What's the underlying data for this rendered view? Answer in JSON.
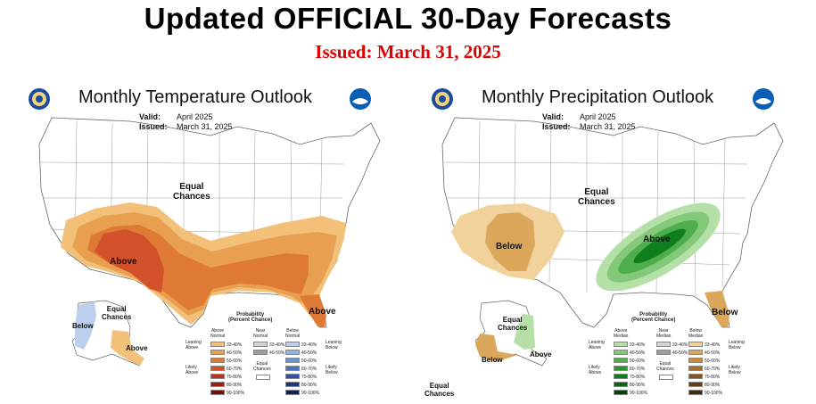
{
  "header": {
    "title": "Updated OFFICIAL 30-Day Forecasts",
    "issued": "Issued: March 31, 2025"
  },
  "panels": [
    {
      "title": "Monthly Temperature Outlook",
      "valid_label": "Valid:",
      "valid_value": "April 2025",
      "issued_label": "Issued:",
      "issued_value": "March 31, 2025",
      "labels": {
        "equal_chances": "Equal\nChances",
        "above_main": "Above",
        "above_florida": "Above",
        "alaska_equal": "Equal\nChances",
        "alaska_below": "Below",
        "alaska_above": "Above"
      },
      "legend": {
        "title": "Probability\n(Percent Chance)",
        "col1": "Above\nNormal",
        "col2": "Near\nNormal",
        "col3": "Below\nNormal",
        "leaning_left": "Leaning\nAbove",
        "likely_left": "Likely\nAbove",
        "leaning_right": "Leaning\nBelow",
        "likely_right": "Likely\nBelow",
        "equal_chances": "Equal\nChances",
        "col1_ranges": [
          "33-40%",
          "40-50%",
          "50-60%",
          "60-70%",
          "70-80%",
          "80-90%",
          "90-100%"
        ],
        "col2_ranges": [
          "33-40%",
          "40-50%"
        ],
        "col3_ranges": [
          "33-40%",
          "40-50%",
          "50-60%",
          "60-70%",
          "70-80%",
          "80-90%",
          "90-100%"
        ],
        "col1_colors": [
          "#f2c079",
          "#e8a050",
          "#df7a35",
          "#d2502a",
          "#b8341e",
          "#962010",
          "#6e1206"
        ],
        "col2_colors": [
          "#d2d2d2",
          "#9e9e9e"
        ],
        "col3_colors": [
          "#bcd0ee",
          "#93b4e2",
          "#6d95d3",
          "#4a74c2",
          "#2e52a6",
          "#1f3580",
          "#141f58"
        ]
      }
    },
    {
      "title": "Monthly Precipitation Outlook",
      "valid_label": "Valid:",
      "valid_value": "April 2025",
      "issued_label": "Issued:",
      "issued_value": "March 31, 2025",
      "labels": {
        "equal_chances": "Equal\nChances",
        "below_sw": "Below",
        "above_main": "Above",
        "below_florida": "Below",
        "alaska_equal_top": "Equal\nChances",
        "alaska_below": "Below",
        "alaska_above": "Above",
        "alaska_equal_bottom": "Equal\nChances"
      },
      "legend": {
        "title": "Probability\n(Percent Chance)",
        "col1": "Above\nMedian",
        "col2": "Near\nMedian",
        "col3": "Below\nMedian",
        "leaning_left": "Leaning\nAbove",
        "likely_left": "Likely\nAbove",
        "leaning_right": "Leaning\nBelow",
        "likely_right": "Likely\nBelow",
        "equal_chances": "Equal\nChances",
        "col1_ranges": [
          "33-40%",
          "40-50%",
          "50-60%",
          "60-70%",
          "70-80%",
          "80-90%",
          "90-100%"
        ],
        "col2_ranges": [
          "33-40%",
          "40-50%"
        ],
        "col3_ranges": [
          "33-40%",
          "40-50%",
          "50-60%",
          "60-70%",
          "70-80%",
          "80-90%",
          "90-100%"
        ],
        "col1_colors": [
          "#b4e0a8",
          "#84c87a",
          "#4fae4c",
          "#269a2a",
          "#0f7e1c",
          "#0b6114",
          "#06400c"
        ],
        "col2_colors": [
          "#d2d2d2",
          "#9e9e9e"
        ],
        "col3_colors": [
          "#f0d29a",
          "#dba75a",
          "#c98a3a",
          "#a86e2c",
          "#845520",
          "#633f18",
          "#422a10"
        ]
      }
    }
  ],
  "colors": {
    "title_red": "#e00000",
    "above_light": "#f2c079",
    "above_mid": "#e8a050",
    "above_strong": "#df7a35",
    "above_core": "#d2502a",
    "below_blue": "#bcd0ee",
    "precip_green_light": "#b4e0a8",
    "precip_green_mid": "#84c87a",
    "precip_green_strong": "#4fae4c",
    "precip_green_core": "#0f7e1c",
    "precip_below": "#f0d29a",
    "precip_below_mid": "#dba75a"
  },
  "icons": [
    "doc-seal-icon",
    "noaa-logo-icon"
  ]
}
